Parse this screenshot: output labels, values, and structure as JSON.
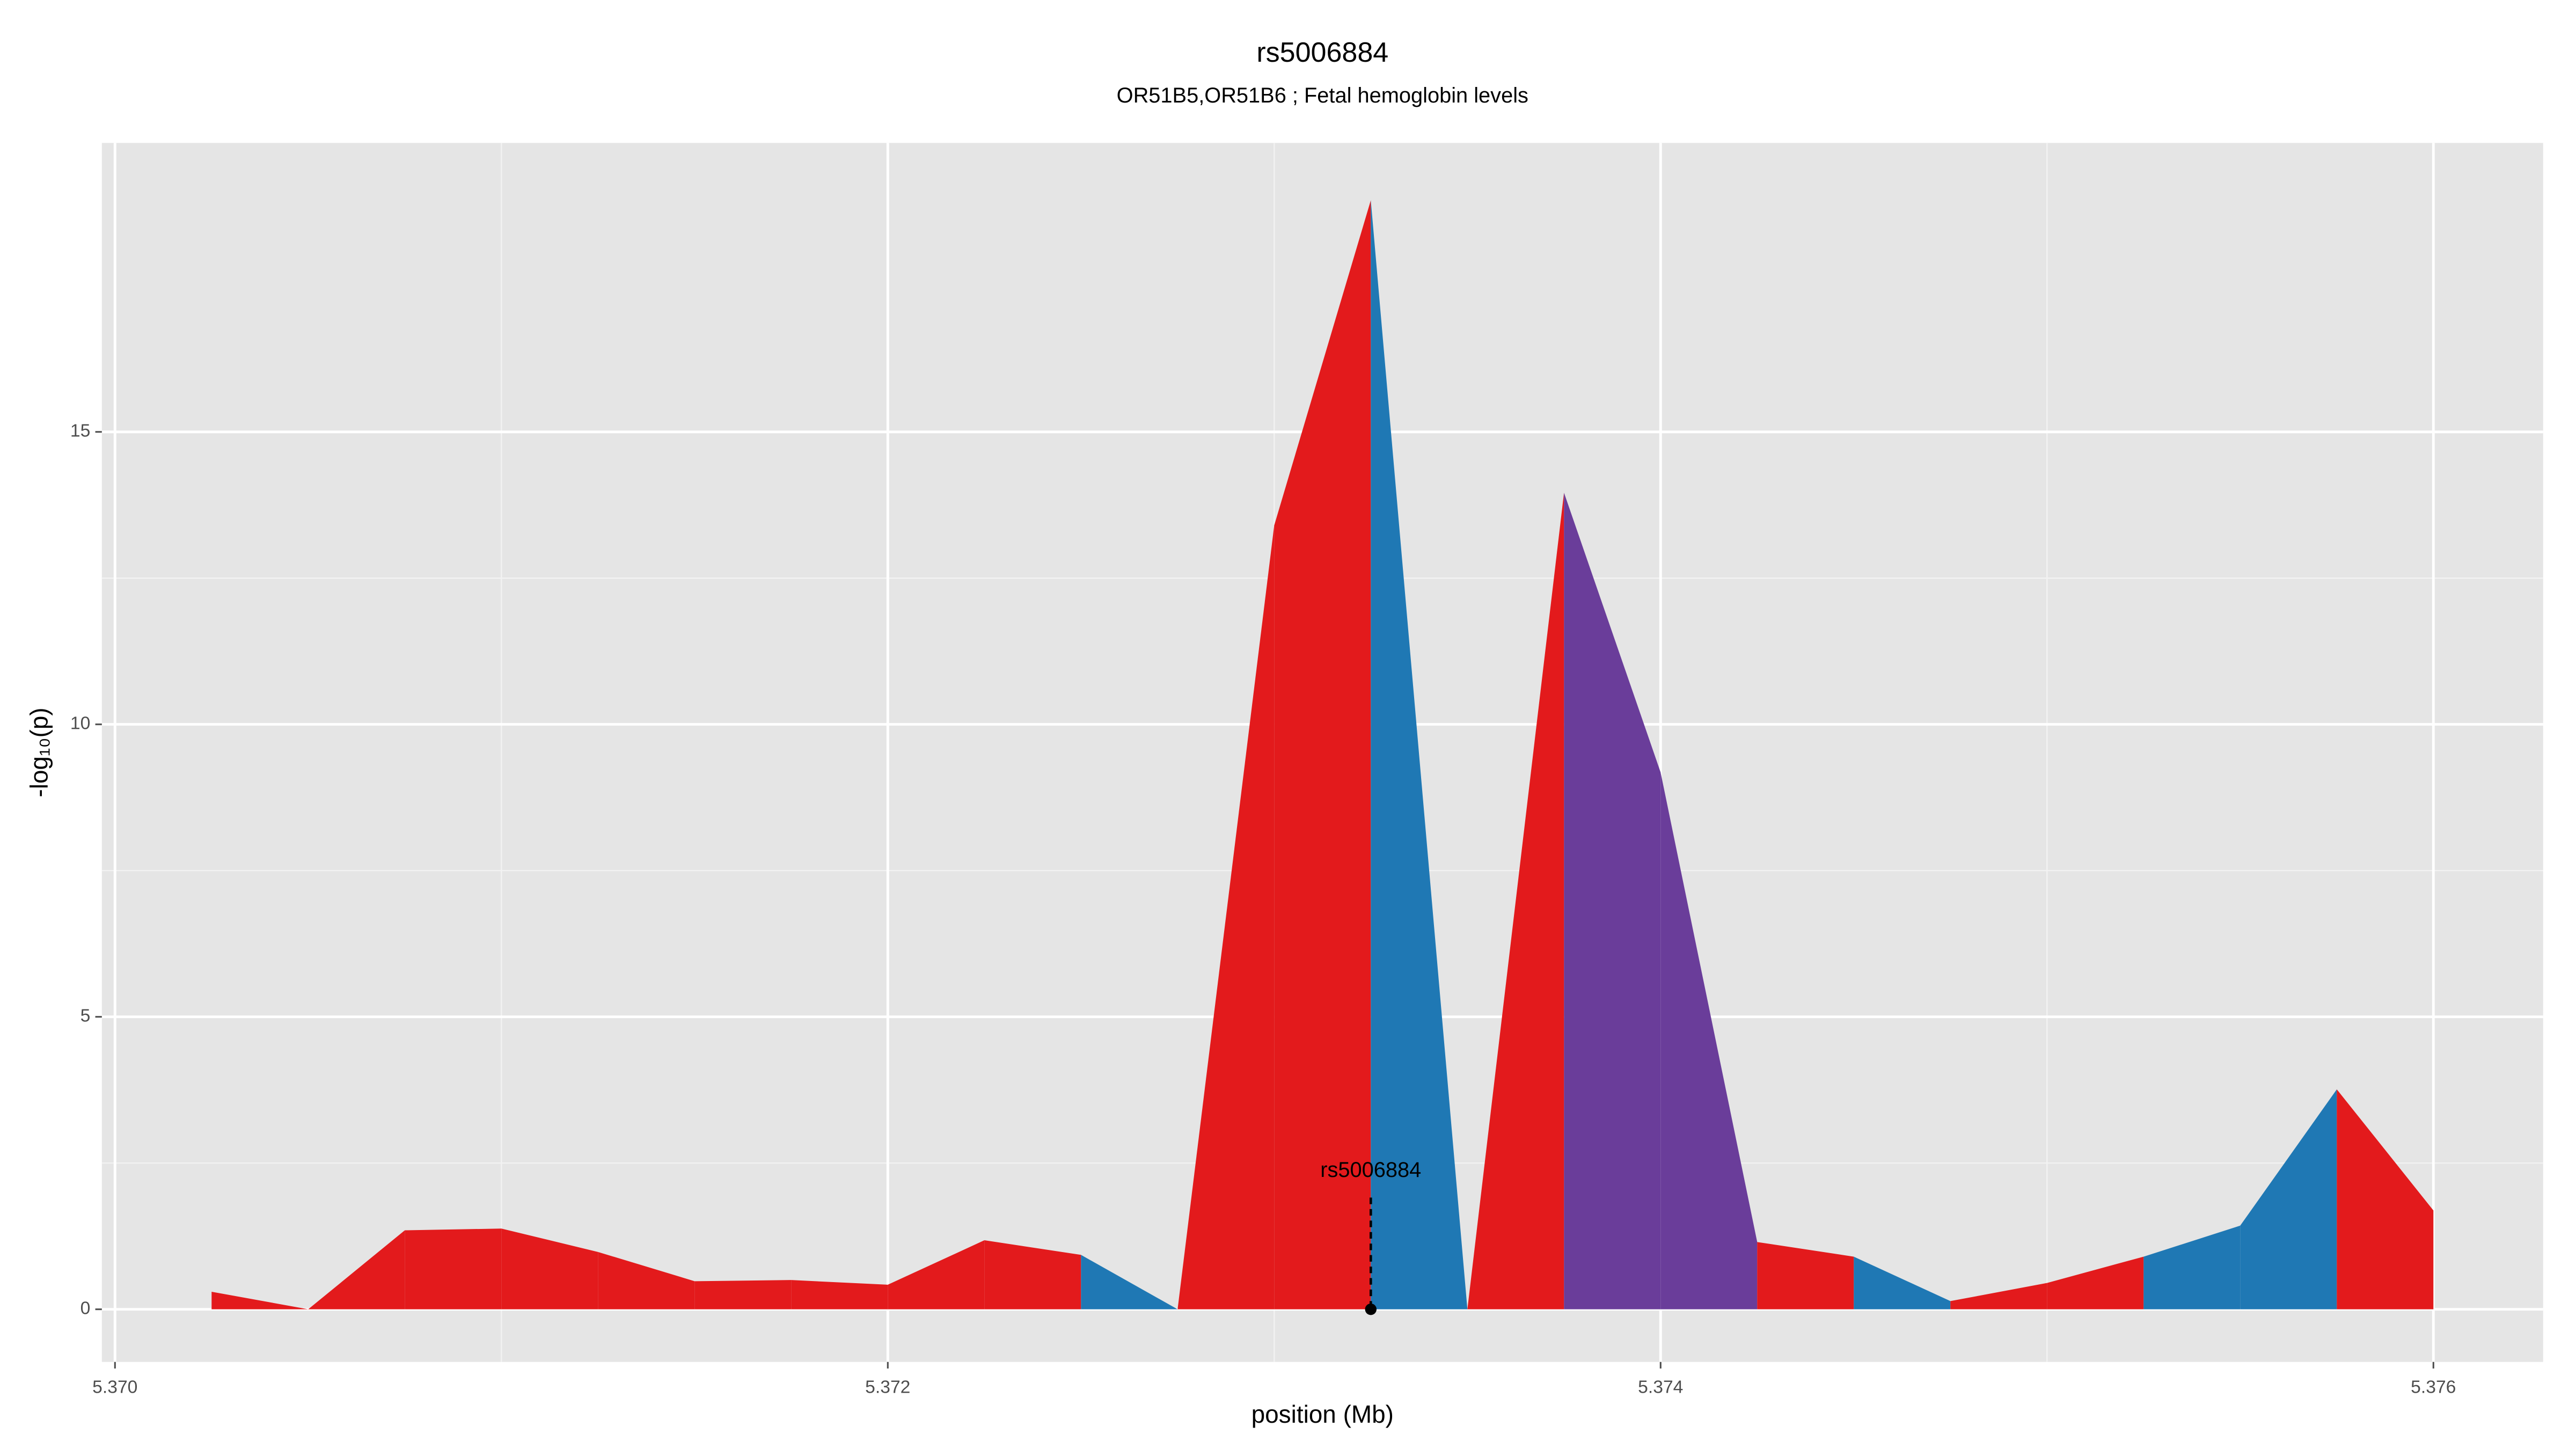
{
  "chart_data": {
    "type": "area",
    "title": "rs5006884",
    "subtitle": "OR51B5,OR51B6 ; Fetal hemoglobin levels",
    "x_label": "position (Mb)",
    "y_label": "-log₁₀(p)",
    "x": [
      5.37025,
      5.3705,
      5.37075,
      5.371,
      5.37125,
      5.3715,
      5.37175,
      5.372,
      5.37225,
      5.3725,
      5.37275,
      5.373,
      5.37325,
      5.3735,
      5.37375,
      5.374,
      5.37425,
      5.3745,
      5.37475,
      5.375,
      5.37525,
      5.3755,
      5.37575,
      5.376
    ],
    "values": [
      0.3,
      0,
      1.35,
      1.38,
      0.98,
      0.48,
      0.5,
      0.42,
      1.18,
      0.93,
      0,
      13.4,
      18.96,
      0,
      13.96,
      9.18,
      1.15,
      0.9,
      0.14,
      0.45,
      0.9,
      1.43,
      3.76,
      1.69
    ],
    "segment_colors": [
      "#e31a1c",
      "#e31a1c",
      "#e31a1c",
      "#e31a1c",
      "#e31a1c",
      "#e31a1c",
      "#e31a1c",
      "#e31a1c",
      "#e31a1c",
      "#1f78b4",
      "#e31a1c",
      "#e31a1c",
      "#1f78b4",
      "#e31a1c",
      "#6a3d9a",
      "#6a3d9a",
      "#e31a1c",
      "#1f78b4",
      "#e31a1c",
      "#e31a1c",
      "#1f78b4",
      "#1f78b4",
      "#e31a1c"
    ],
    "annotation": {
      "text": "rs5006884",
      "x": 5.37325
    },
    "xlim": [
      5.369966,
      5.376284
    ],
    "ylim": [
      -0.9,
      19.94
    ],
    "xticks": [
      {
        "value": 5.37,
        "label": "5.370"
      },
      5.372,
      5.374,
      5.376
    ],
    "yticks": [
      0,
      5,
      10,
      15
    ],
    "grid": true
  }
}
